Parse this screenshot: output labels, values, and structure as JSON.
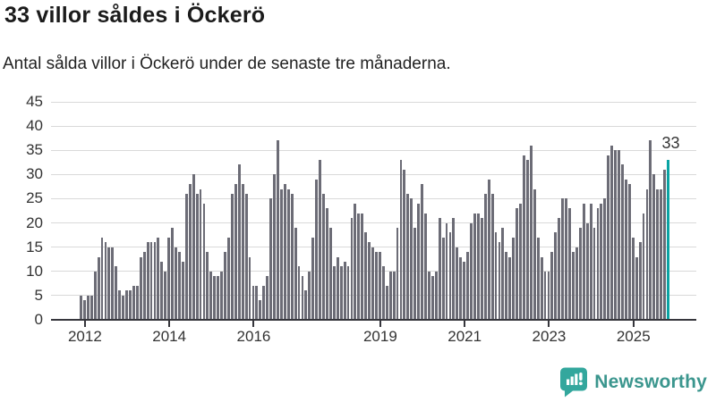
{
  "header": {
    "title": "33 villor såldes i Öckerö",
    "subtitle": "Antal sålda villor i Öckerö under de senaste tre månaderna."
  },
  "chart_data": {
    "type": "bar",
    "title": "33 villor såldes i Öckerö",
    "subtitle": "Antal sålda villor i Öckerö under de senaste tre månaderna.",
    "frequency": "monthly",
    "x_start": "2011-12",
    "ylim": [
      0,
      45
    ],
    "y_ticks": [
      0,
      5,
      10,
      15,
      20,
      25,
      30,
      35,
      40,
      45
    ],
    "grid": "horizontal",
    "bar_color": "#6c6c76",
    "highlight_color": "#0aa3a3",
    "x_tick_labels": [
      {
        "label": "2012",
        "month_index": 1
      },
      {
        "label": "2014",
        "month_index": 25
      },
      {
        "label": "2016",
        "month_index": 49
      },
      {
        "label": "2019",
        "month_index": 85
      },
      {
        "label": "2021",
        "month_index": 109
      },
      {
        "label": "2023",
        "month_index": 133
      },
      {
        "label": "2025",
        "month_index": 157
      }
    ],
    "values": [
      5,
      4,
      5,
      5,
      10,
      13,
      17,
      16,
      15,
      15,
      11,
      6,
      5,
      6,
      6,
      7,
      7,
      13,
      14,
      16,
      16,
      16,
      17,
      12,
      10,
      17,
      19,
      15,
      14,
      12,
      26,
      28,
      30,
      26,
      27,
      24,
      14,
      10,
      9,
      9,
      10,
      14,
      17,
      26,
      28,
      32,
      28,
      26,
      13,
      7,
      7,
      4,
      7,
      9,
      25,
      30,
      37,
      27,
      28,
      27,
      26,
      19,
      11,
      9,
      6,
      10,
      17,
      29,
      33,
      26,
      23,
      19,
      11,
      13,
      11,
      12,
      11,
      21,
      24,
      22,
      22,
      18,
      16,
      15,
      14,
      14,
      11,
      7,
      10,
      10,
      19,
      33,
      31,
      26,
      25,
      19,
      24,
      28,
      22,
      10,
      9,
      10,
      21,
      17,
      20,
      18,
      21,
      15,
      13,
      12,
      14,
      20,
      22,
      22,
      21,
      26,
      29,
      26,
      18,
      16,
      19,
      14,
      13,
      17,
      23,
      24,
      34,
      33,
      36,
      27,
      17,
      13,
      10,
      10,
      14,
      18,
      21,
      25,
      25,
      23,
      14,
      15,
      19,
      24,
      20,
      24,
      19,
      23,
      24,
      25,
      34,
      36,
      35,
      35,
      32,
      29,
      28,
      17,
      13,
      16,
      22,
      27,
      37,
      30,
      27,
      27,
      31,
      33
    ],
    "highlight_last": true,
    "annotation": {
      "text": "33",
      "value": 33
    }
  },
  "footer": {
    "brand": "Newsworthy",
    "logo_icon": "newsworthy-chart-speech-bubble-icon",
    "brand_color": "#3b968e",
    "icon_color": "#33a79d"
  }
}
